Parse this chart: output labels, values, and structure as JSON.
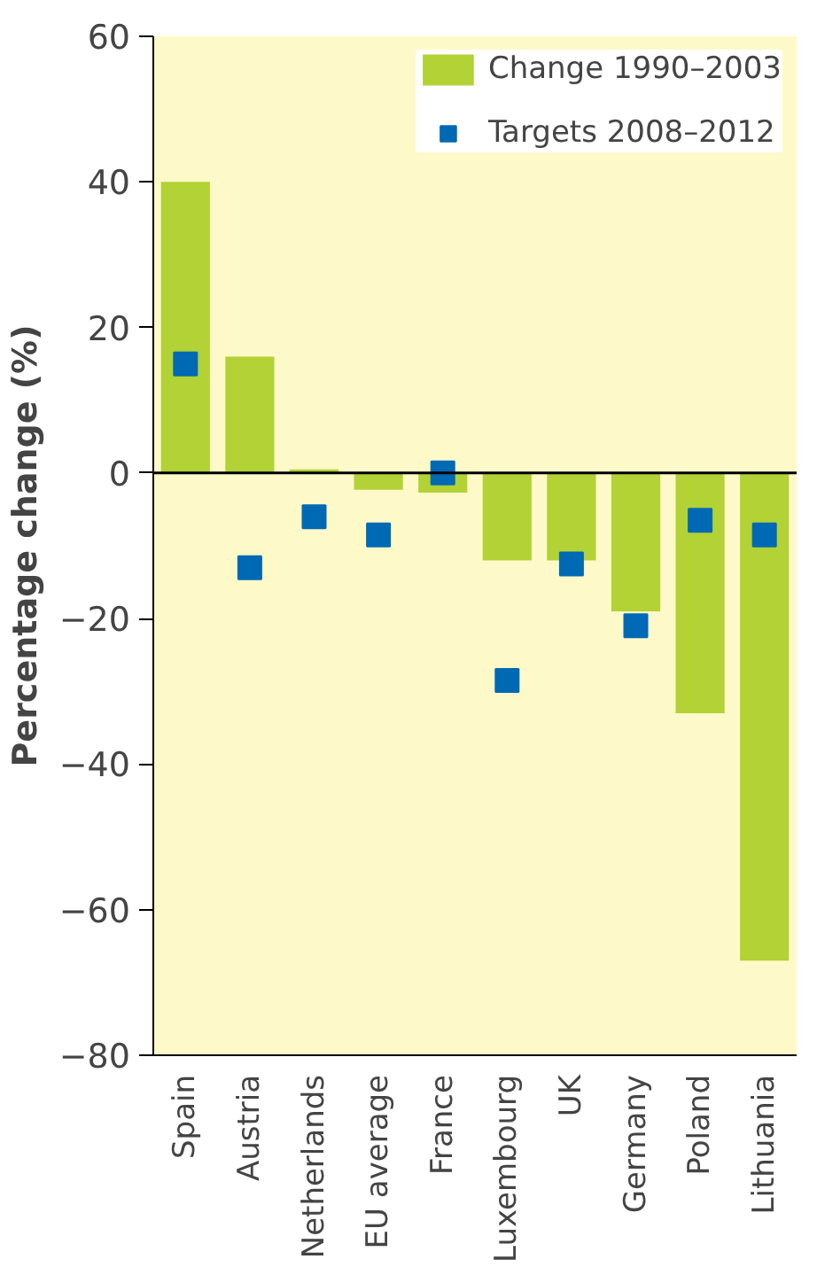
{
  "chart_data": {
    "type": "bar",
    "ylabel": "Percentage change (%)",
    "categories": [
      "Spain",
      "Austria",
      "Netherlands",
      "EU average",
      "France",
      "Luxembourg",
      "UK",
      "Germany",
      "Poland",
      "Lithuania"
    ],
    "series": [
      {
        "name": "Change 1990–2003",
        "color": "#b2d235",
        "values": [
          40,
          16,
          0.5,
          -2.3,
          -2.7,
          -12,
          -12,
          -19,
          -33,
          -67
        ]
      },
      {
        "name": "Targets 2008–2012",
        "type": "scatter",
        "marker": "square",
        "color": "#0069b4",
        "values": [
          15,
          -13,
          -6,
          -8.5,
          0,
          -28.5,
          -12.5,
          -21,
          -6.5,
          -8.5
        ]
      }
    ],
    "ylim": [
      -80,
      60
    ],
    "yticks": [
      {
        "value": -80,
        "label": "−80"
      },
      {
        "value": -60,
        "label": "−60"
      },
      {
        "value": -40,
        "label": "−40"
      },
      {
        "value": -20,
        "label": "−20"
      },
      0,
      20,
      40,
      60
    ],
    "ref_lines": [
      {
        "axis": "y",
        "value": 0,
        "color": "#000000"
      }
    ],
    "grid": false,
    "legend": "top right"
  }
}
